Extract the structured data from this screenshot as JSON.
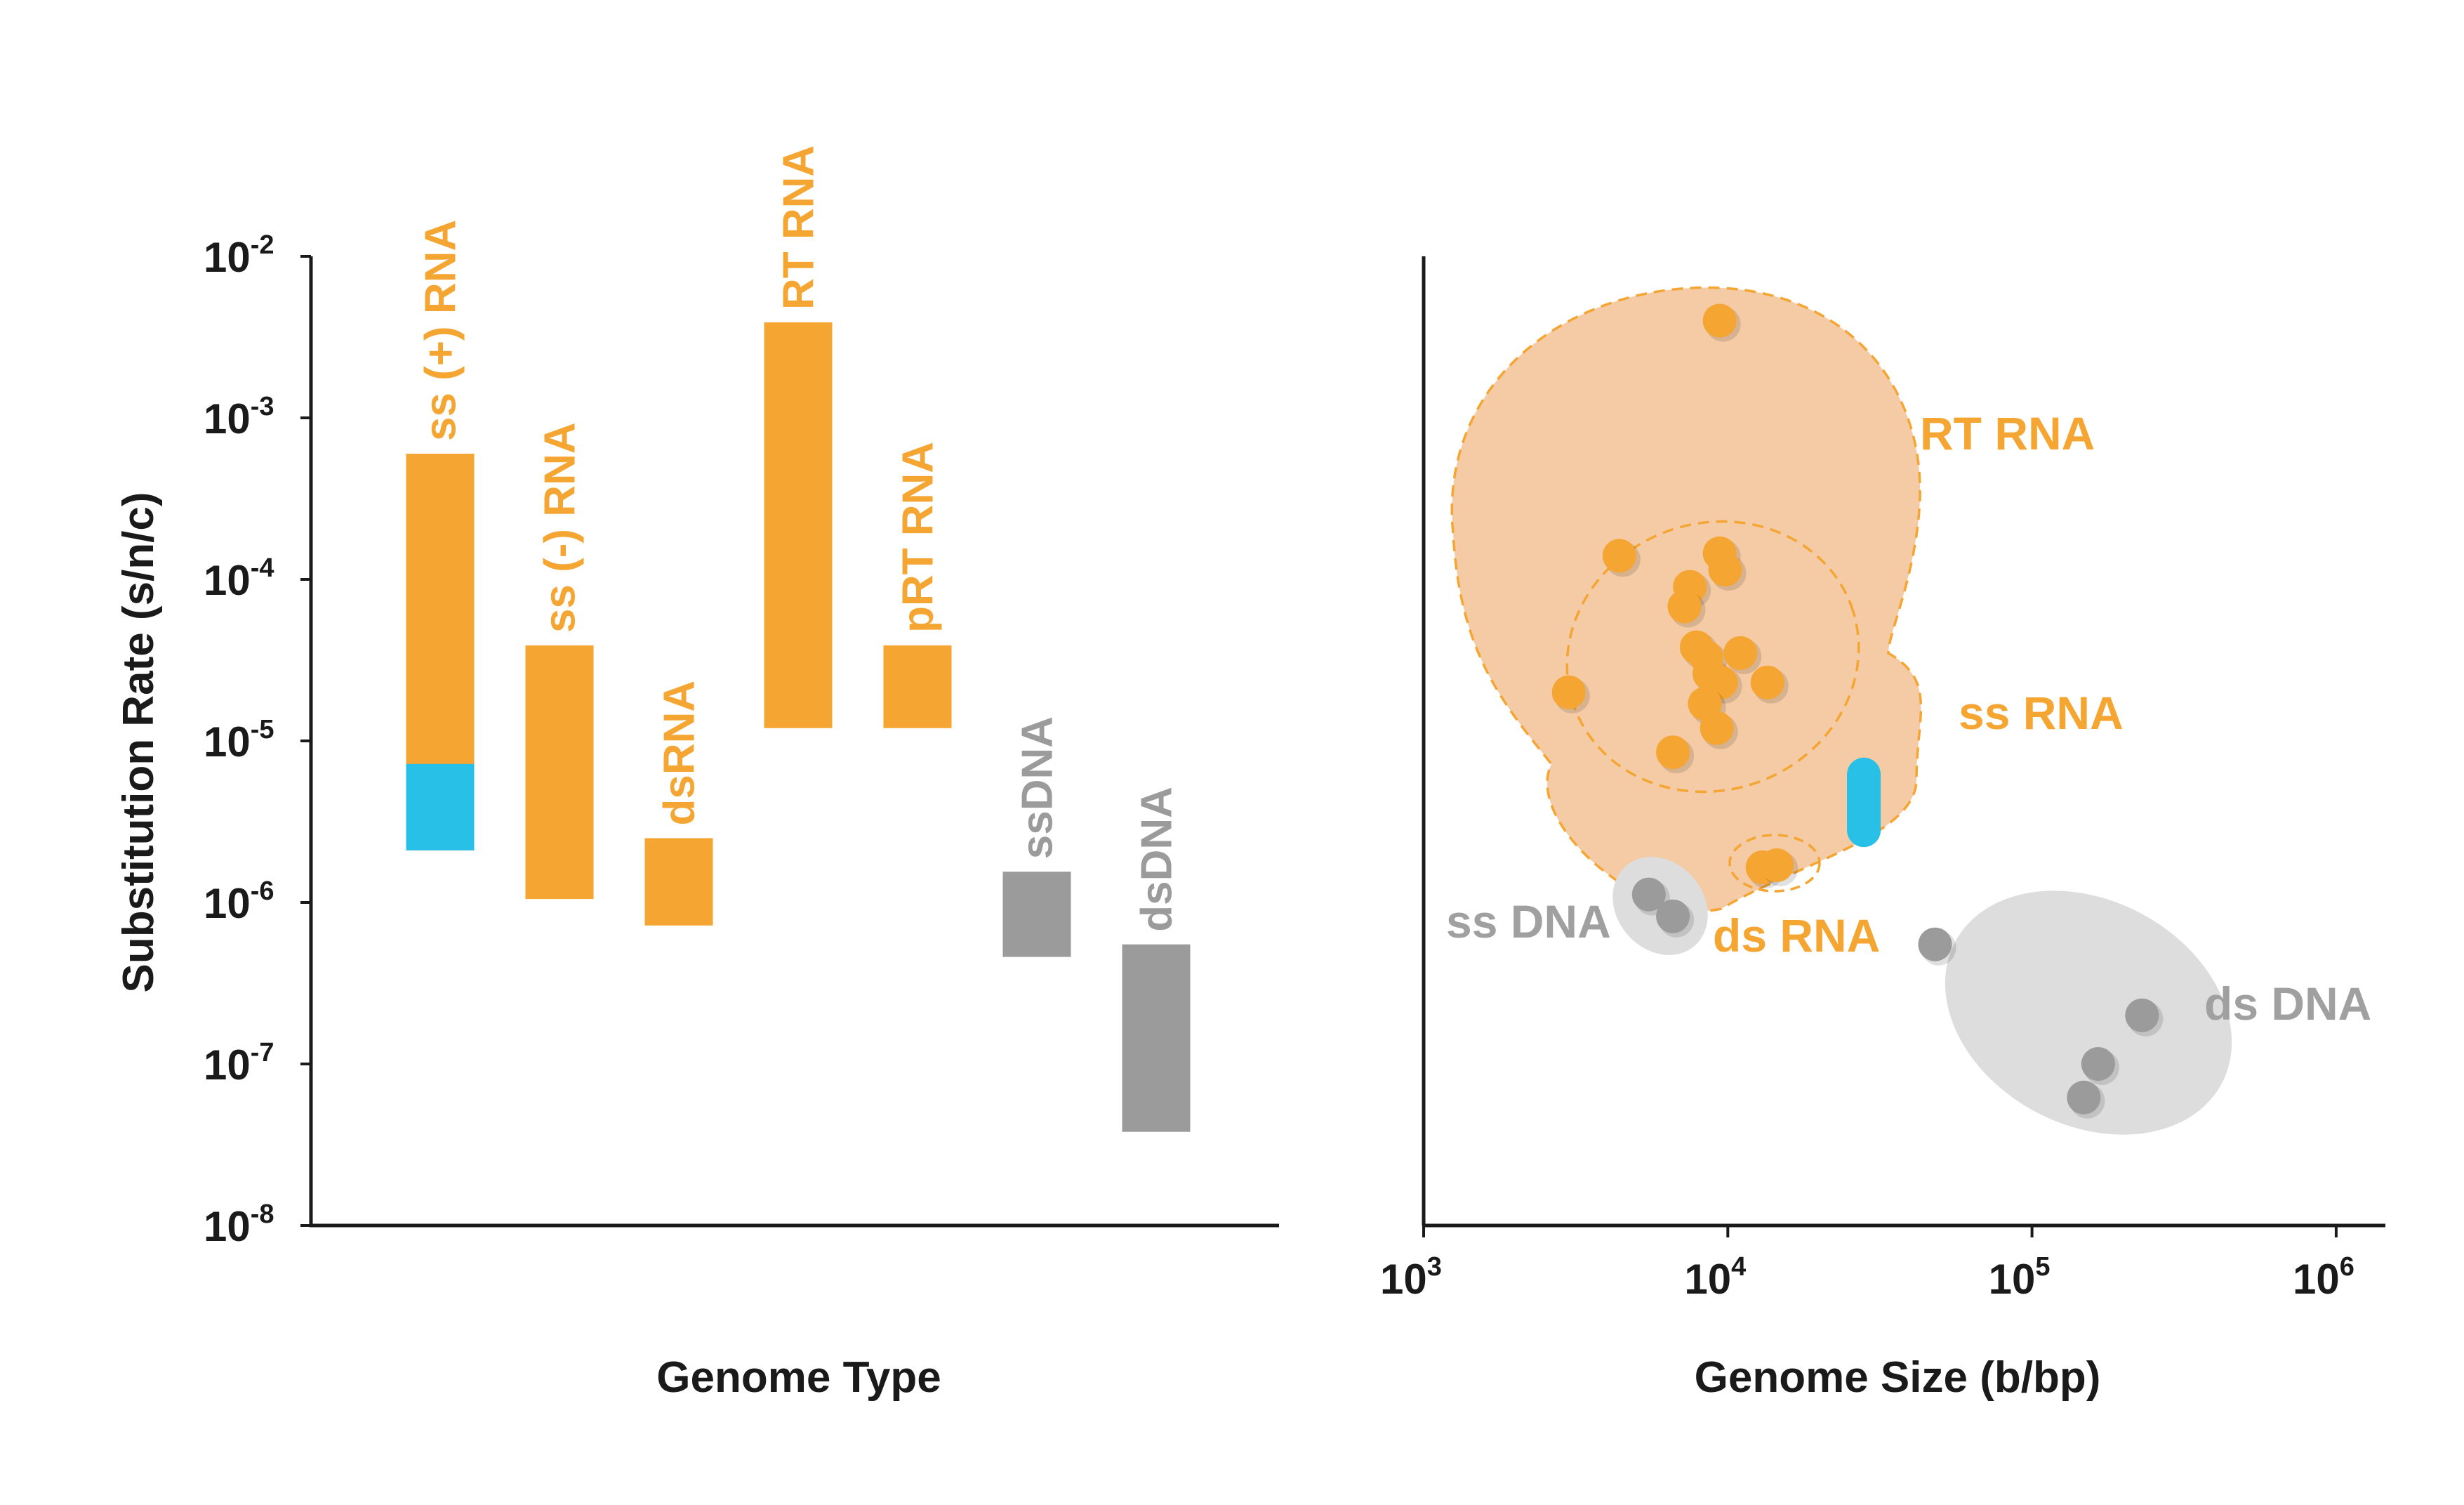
{
  "chart_data": [
    {
      "type": "bar",
      "subtype": "floating-range",
      "title": "",
      "xlabel": "Genome Type",
      "ylabel": "Substitution Rate (s/n/c)",
      "yscale": "log",
      "ylim": [
        1e-08,
        0.01
      ],
      "yticks": [
        {
          "base": "10",
          "exp": "-2"
        },
        {
          "base": "10",
          "exp": "-3"
        },
        {
          "base": "10",
          "exp": "-4"
        },
        {
          "base": "10",
          "exp": "-5"
        },
        {
          "base": "10",
          "exp": "-6"
        },
        {
          "base": "10",
          "exp": "-7"
        },
        {
          "base": "10",
          "exp": "-8"
        }
      ],
      "categories": [
        "ss (+) RNA",
        "ss (-) RNA",
        "dsRNA",
        "RT RNA",
        "pRT  RNA",
        "ssDNA",
        "dsDNA"
      ],
      "ranges": [
        {
          "low": 2.1e-06,
          "high": 0.0006,
          "color": "#f5a531",
          "highlight": {
            "low": 2.1e-06,
            "high": 7.2e-06,
            "color": "#29c0e8"
          }
        },
        {
          "low": 1.05e-06,
          "high": 3.9e-05,
          "color": "#f5a531"
        },
        {
          "low": 7.2e-07,
          "high": 2.5e-06,
          "color": "#f5a531"
        },
        {
          "low": 1.2e-05,
          "high": 0.0039,
          "color": "#f5a531"
        },
        {
          "low": 1.2e-05,
          "high": 3.9e-05,
          "color": "#f5a531"
        },
        {
          "low": 4.6e-07,
          "high": 1.55e-06,
          "color": "#9b9b9b"
        },
        {
          "low": 3.8e-08,
          "high": 5.5e-07,
          "color": "#9b9b9b"
        }
      ],
      "grid": false
    },
    {
      "type": "scatter",
      "title": "",
      "xlabel": "Genome Size (b/bp)",
      "ylabel": "",
      "xscale": "log",
      "yscale": "log",
      "xlim": [
        1000,
        1400000
      ],
      "ylim": [
        1e-08,
        0.01
      ],
      "xticks": [
        {
          "base": "10",
          "exp": "3"
        },
        {
          "base": "10",
          "exp": "4"
        },
        {
          "base": "10",
          "exp": "5"
        },
        {
          "base": "10",
          "exp": "6"
        }
      ],
      "series": [
        {
          "name": "RT RNA",
          "color": "#f5a531",
          "points": [
            [
              9400,
              0.004
            ]
          ]
        },
        {
          "name": "ss RNA",
          "color": "#f5a531",
          "points": [
            [
              4400,
              0.00014
            ],
            [
              9400,
              0.000145
            ],
            [
              9800,
              0.000115
            ],
            [
              7500,
              9e-05
            ],
            [
              7200,
              6.8e-05
            ],
            [
              7900,
              3.8e-05
            ],
            [
              8500,
              3.3e-05
            ],
            [
              11000,
              3.5e-05
            ],
            [
              8700,
              2.6e-05
            ],
            [
              9500,
              2.3e-05
            ],
            [
              13500,
              2.3e-05
            ],
            [
              3000,
              2e-05
            ],
            [
              8400,
              1.7e-05
            ],
            [
              9200,
              1.2e-05
            ],
            [
              6600,
              8.5e-06
            ]
          ]
        },
        {
          "name": "ss RNA (blue)",
          "color": "#29c0e8",
          "points": [
            [
              28000,
              6.2e-06
            ],
            [
              28000,
              2.8e-06
            ]
          ]
        },
        {
          "name": "ds RNA",
          "color": "#f5a531",
          "points": [
            [
              13000,
              1.65e-06
            ],
            [
              14500,
              1.7e-06
            ]
          ]
        },
        {
          "name": "ss DNA",
          "color": "#9b9b9b",
          "points": [
            [
              5500,
              1.12e-06
            ],
            [
              6600,
              8.2e-07
            ]
          ]
        },
        {
          "name": "ds DNA",
          "color": "#9b9b9b",
          "points": [
            [
              48000,
              5.5e-07
            ],
            [
              230000,
              2e-07
            ],
            [
              165000,
              1e-07
            ],
            [
              148000,
              6.2e-08
            ]
          ]
        }
      ],
      "annotations": [
        "RT RNA",
        "ss RNA",
        "ds RNA",
        "ss DNA",
        "ds DNA"
      ],
      "grid": false
    }
  ]
}
